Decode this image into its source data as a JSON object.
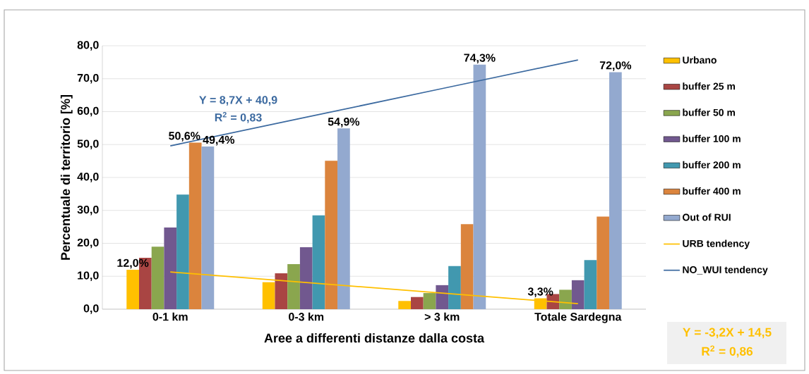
{
  "chart_data": {
    "type": "bar",
    "xlabel": "Aree a differenti distanze dalla costa",
    "ylabel": "Percentuale di territorio [%]",
    "categories": [
      "0-1 km",
      "0-3 km",
      "> 3 km",
      "Totale Sardegna"
    ],
    "series": [
      {
        "name": "Urbano",
        "color": "#ffc000",
        "values": [
          12.0,
          8.2,
          2.5,
          3.3
        ],
        "value_labels": [
          "12,0%",
          null,
          null,
          "3,3%"
        ]
      },
      {
        "name": "buffer 25 m",
        "color": "#a94543",
        "values": [
          15.6,
          10.9,
          3.7,
          4.6
        ]
      },
      {
        "name": "buffer 50 m",
        "color": "#8aa64e",
        "values": [
          19.0,
          13.7,
          4.9,
          5.9
        ]
      },
      {
        "name": "buffer 100 m",
        "color": "#71588f",
        "values": [
          24.8,
          18.8,
          7.3,
          8.8
        ]
      },
      {
        "name": "buffer 200 m",
        "color": "#4198af",
        "values": [
          34.8,
          28.5,
          13.1,
          14.9
        ]
      },
      {
        "name": "buffer 400 m",
        "color": "#db843d",
        "values": [
          50.6,
          45.1,
          25.8,
          28.1
        ],
        "value_labels": [
          "50,6%",
          null,
          null,
          null
        ]
      },
      {
        "name": "Out of RUI",
        "color": "#93a9cf",
        "values": [
          49.4,
          54.9,
          74.3,
          72.0
        ],
        "value_labels": [
          "49,4%",
          "54,9%",
          "74,3%",
          "72,0%"
        ]
      },
      {
        "name": "URB tendency",
        "type": "line",
        "color": "#ffc000",
        "values": [
          11.3,
          8.1,
          4.9,
          1.7
        ]
      },
      {
        "name": "NO_WUI tendency",
        "type": "line",
        "color": "#3c6aa0",
        "values": [
          49.6,
          58.3,
          67.0,
          75.7
        ]
      }
    ],
    "ylim": [
      0,
      80
    ],
    "yticks": [
      {
        "value": 0,
        "label": "0,0"
      },
      {
        "value": 10,
        "label": "10,0"
      },
      {
        "value": 20,
        "label": "20,0"
      },
      {
        "value": 30,
        "label": "30,0"
      },
      {
        "value": 40,
        "label": "40,0"
      },
      {
        "value": 50,
        "label": "50,0"
      },
      {
        "value": 60,
        "label": "60,0"
      },
      {
        "value": 70,
        "label": "70,0"
      },
      {
        "value": 80,
        "label": "80,0"
      }
    ],
    "grid": "y",
    "legend": "right",
    "marker": "none",
    "annotations": [
      "Y = 8,7X + 40,9",
      "R$^{2}$ = 0,83",
      "Y = -3,2X + 14,5",
      "R$^{2}$ = 0,86"
    ]
  }
}
